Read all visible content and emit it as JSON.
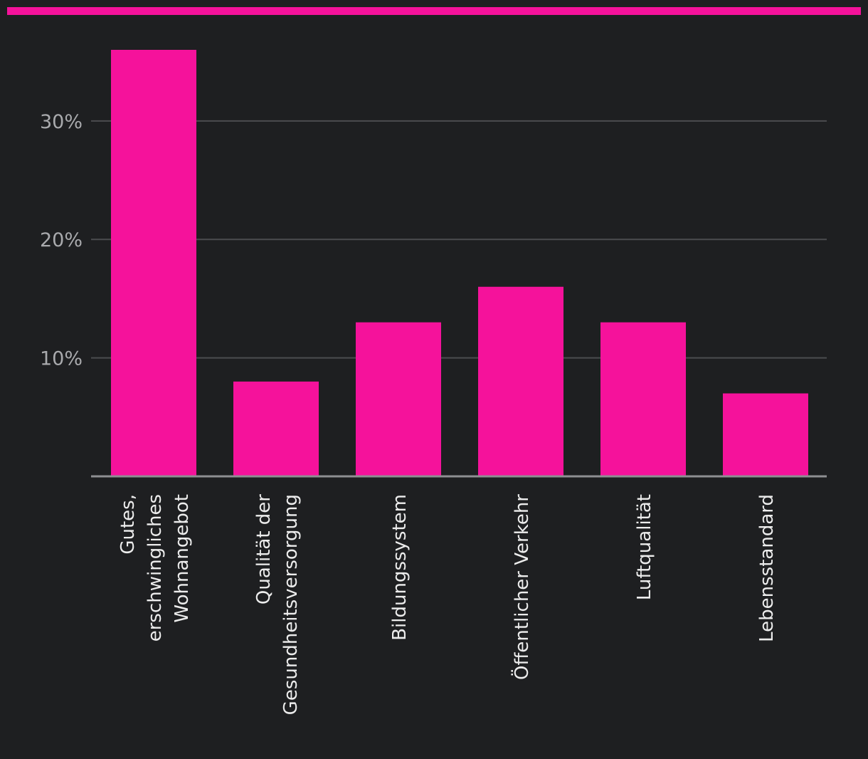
{
  "colors": {
    "background": "#1e1f21",
    "accent": "#f5129b",
    "grid": "#4b4c4f",
    "axis": "#8e8f92",
    "tick_text": "#a9aaad",
    "category_text": "#ececec"
  },
  "chart_data": {
    "type": "bar",
    "title": "",
    "xlabel": "",
    "ylabel": "",
    "categories": [
      "Gutes, erschwingliches Wohnangebot",
      "Qualität der Gesundheitsversorgung",
      "Bildungssystem",
      "Öffentlicher Verkehr",
      "Luftqualität",
      "Lebensstandard"
    ],
    "category_lines": [
      [
        "Gutes,",
        "erschwingliches",
        "Wohnangebot"
      ],
      [
        "Qualität der",
        "Gesundheitsversorgung"
      ],
      [
        "Bildungssystem"
      ],
      [
        "Öffentlicher Verkehr"
      ],
      [
        "Luftqualität"
      ],
      [
        "Lebensstandard"
      ]
    ],
    "values": [
      36,
      8,
      13,
      16,
      13,
      7
    ],
    "ylim": [
      0,
      36
    ],
    "yticks": [
      10,
      20,
      30
    ],
    "ytick_labels": [
      "10%",
      "20%",
      "30%"
    ],
    "grid": true,
    "legend": "none"
  }
}
